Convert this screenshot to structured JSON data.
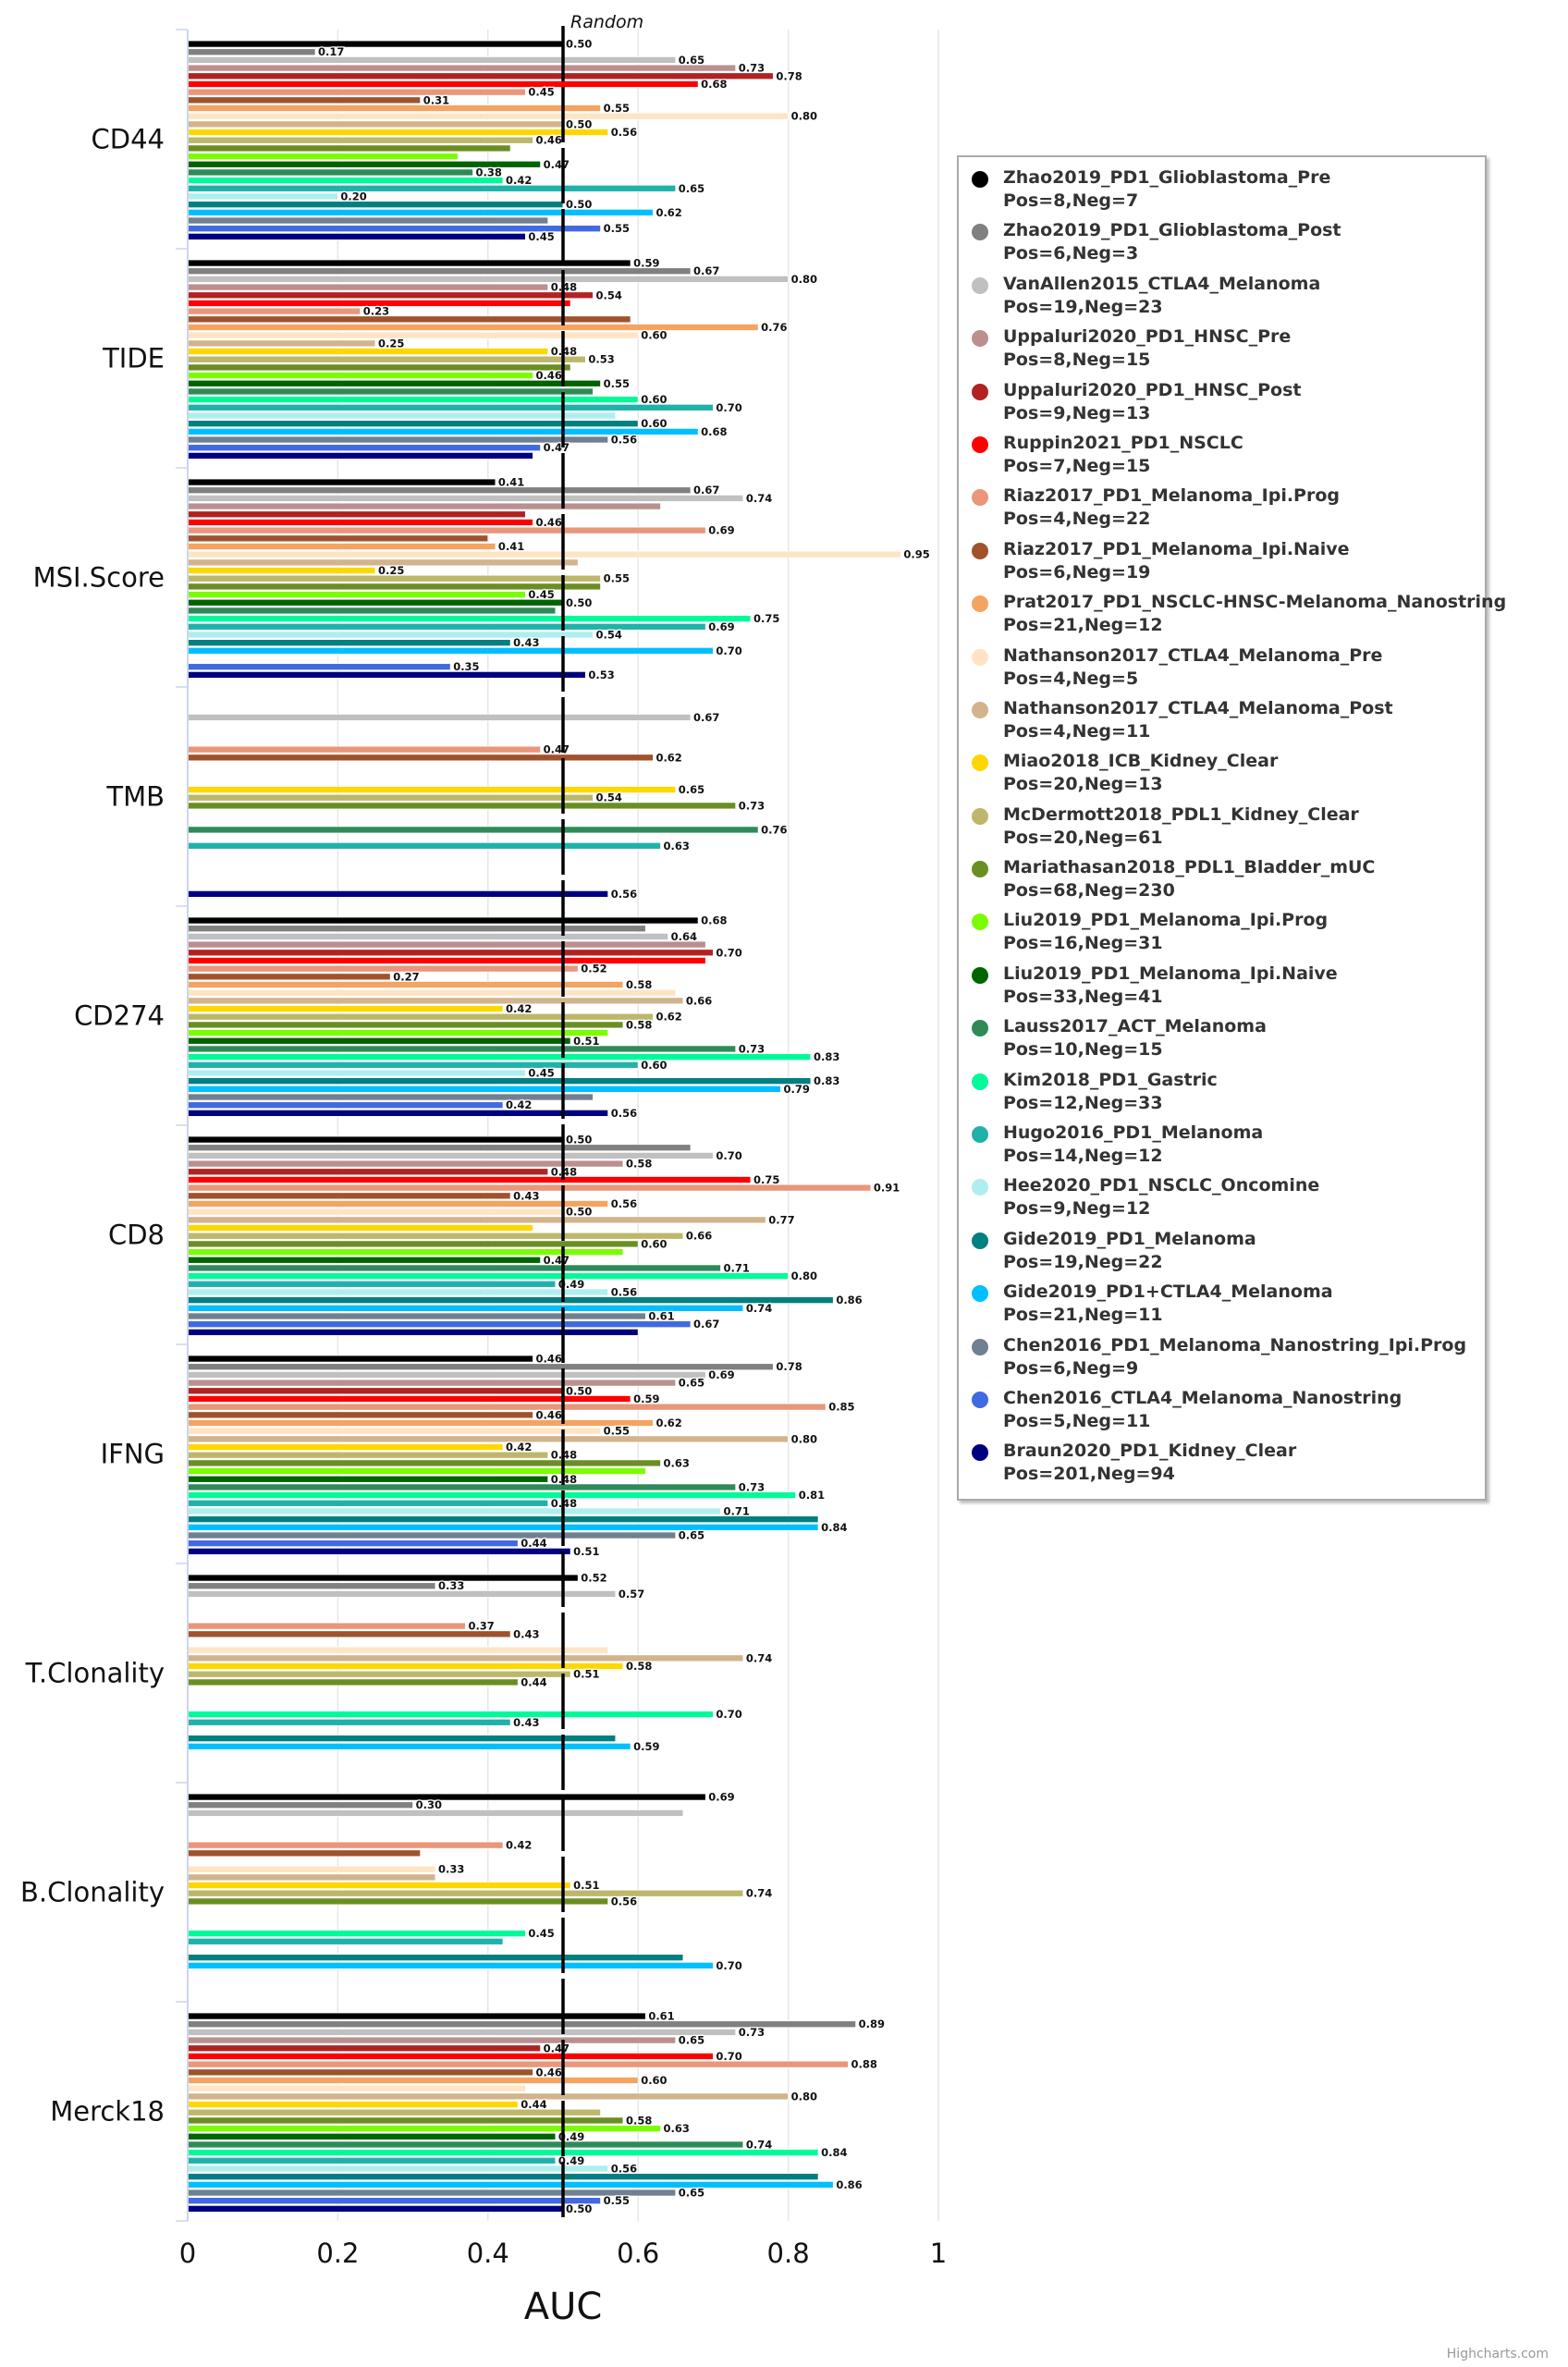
{
  "chart_data": {
    "type": "bar",
    "orientation": "horizontal",
    "title": "",
    "xlabel": "AUC",
    "ylabel": "",
    "xlim": [
      0,
      1
    ],
    "xticks": [
      "0",
      "0.2",
      "0.4",
      "0.6",
      "0.8",
      "1"
    ],
    "xtick_values": [
      0,
      0.2,
      0.4,
      0.6,
      0.8,
      1
    ],
    "grid": true,
    "legend_position": "right",
    "reference_line": {
      "value": 0.5,
      "label": "Random"
    },
    "credits": "Highcharts.com",
    "categories": [
      "CD44",
      "TIDE",
      "MSI.Score",
      "TMB",
      "CD274",
      "CD8",
      "IFNG",
      "T.Clonality",
      "B.Clonality",
      "Merck18"
    ],
    "series": [
      {
        "name": "Zhao2019_PD1_Glioblastoma_Pre",
        "counts": "Pos=8,Neg=7",
        "color": "#000000",
        "values": [
          0.5,
          0.59,
          0.41,
          null,
          0.68,
          0.5,
          0.46,
          0.52,
          0.69,
          0.61
        ]
      },
      {
        "name": "Zhao2019_PD1_Glioblastoma_Post",
        "counts": "Pos=6,Neg=3",
        "color": "#808080",
        "values": [
          0.17,
          0.67,
          0.67,
          null,
          0.61,
          0.67,
          0.78,
          0.33,
          0.3,
          0.89
        ]
      },
      {
        "name": "VanAllen2015_CTLA4_Melanoma",
        "counts": "Pos=19,Neg=23",
        "color": "#C0C0C0",
        "values": [
          0.65,
          0.8,
          0.74,
          0.67,
          0.64,
          0.7,
          0.69,
          0.57,
          0.66,
          0.73
        ]
      },
      {
        "name": "Uppaluri2020_PD1_HNSC_Pre",
        "counts": "Pos=8,Neg=15",
        "color": "#BC8F8F",
        "values": [
          0.73,
          0.48,
          0.63,
          null,
          0.69,
          0.58,
          0.65,
          null,
          null,
          0.65
        ]
      },
      {
        "name": "Uppaluri2020_PD1_HNSC_Post",
        "counts": "Pos=9,Neg=13",
        "color": "#B22222",
        "values": [
          0.78,
          0.54,
          0.45,
          null,
          0.7,
          0.48,
          0.5,
          null,
          null,
          0.47
        ]
      },
      {
        "name": "Ruppin2021_PD1_NSCLC",
        "counts": "Pos=7,Neg=15",
        "color": "#FF0000",
        "values": [
          0.68,
          0.51,
          0.46,
          null,
          0.69,
          0.75,
          0.59,
          null,
          null,
          0.7
        ]
      },
      {
        "name": "Riaz2017_PD1_Melanoma_Ipi.Prog",
        "counts": "Pos=4,Neg=22",
        "color": "#E9967A",
        "values": [
          0.45,
          0.23,
          0.69,
          0.47,
          0.52,
          0.91,
          0.85,
          0.37,
          0.42,
          0.88
        ]
      },
      {
        "name": "Riaz2017_PD1_Melanoma_Ipi.Naive",
        "counts": "Pos=6,Neg=19",
        "color": "#A0522D",
        "values": [
          0.31,
          0.59,
          0.4,
          0.62,
          0.27,
          0.43,
          0.46,
          0.43,
          0.31,
          0.46
        ]
      },
      {
        "name": "Prat2017_PD1_NSCLC-HNSC-Melanoma_Nanostring",
        "counts": "Pos=21,Neg=12",
        "color": "#F4A460",
        "values": [
          0.55,
          0.76,
          0.41,
          null,
          0.58,
          0.56,
          0.62,
          null,
          null,
          0.6
        ]
      },
      {
        "name": "Nathanson2017_CTLA4_Melanoma_Pre",
        "counts": "Pos=4,Neg=5",
        "color": "#FFE4C4",
        "values": [
          0.8,
          0.6,
          0.95,
          null,
          0.65,
          0.5,
          0.55,
          0.56,
          0.33,
          0.45
        ]
      },
      {
        "name": "Nathanson2017_CTLA4_Melanoma_Post",
        "counts": "Pos=4,Neg=11",
        "color": "#D2B48C",
        "values": [
          0.5,
          0.25,
          0.52,
          null,
          0.66,
          0.77,
          0.8,
          0.74,
          0.33,
          0.8
        ]
      },
      {
        "name": "Miao2018_ICB_Kidney_Clear",
        "counts": "Pos=20,Neg=13",
        "color": "#FFD700",
        "values": [
          0.56,
          0.48,
          0.25,
          0.65,
          0.42,
          0.46,
          0.42,
          0.58,
          0.51,
          0.44
        ]
      },
      {
        "name": "McDermott2018_PDL1_Kidney_Clear",
        "counts": "Pos=20,Neg=61",
        "color": "#BDB76B",
        "values": [
          0.46,
          0.53,
          0.55,
          0.54,
          0.62,
          0.66,
          0.48,
          0.51,
          0.74,
          0.55
        ]
      },
      {
        "name": "Mariathasan2018_PDL1_Bladder_mUC",
        "counts": "Pos=68,Neg=230",
        "color": "#6B8E23",
        "values": [
          0.43,
          0.51,
          0.55,
          0.73,
          0.58,
          0.6,
          0.63,
          0.44,
          0.56,
          0.58
        ]
      },
      {
        "name": "Liu2019_PD1_Melanoma_Ipi.Prog",
        "counts": "Pos=16,Neg=31",
        "color": "#7CFC00",
        "values": [
          0.36,
          0.46,
          0.45,
          null,
          0.56,
          0.58,
          0.61,
          null,
          null,
          0.63
        ]
      },
      {
        "name": "Liu2019_PD1_Melanoma_Ipi.Naive",
        "counts": "Pos=33,Neg=41",
        "color": "#006400",
        "values": [
          0.47,
          0.55,
          0.5,
          null,
          0.51,
          0.47,
          0.48,
          null,
          null,
          0.49
        ]
      },
      {
        "name": "Lauss2017_ACT_Melanoma",
        "counts": "Pos=10,Neg=15",
        "color": "#2E8B57",
        "values": [
          0.38,
          0.54,
          0.49,
          0.76,
          0.73,
          0.71,
          0.73,
          null,
          null,
          0.74
        ]
      },
      {
        "name": "Kim2018_PD1_Gastric",
        "counts": "Pos=12,Neg=33",
        "color": "#00FA9A",
        "values": [
          0.42,
          0.6,
          0.75,
          null,
          0.83,
          0.8,
          0.81,
          0.7,
          0.45,
          0.84
        ]
      },
      {
        "name": "Hugo2016_PD1_Melanoma",
        "counts": "Pos=14,Neg=12",
        "color": "#20B2AA",
        "values": [
          0.65,
          0.7,
          0.69,
          0.63,
          0.6,
          0.49,
          0.48,
          0.43,
          0.42,
          0.49
        ]
      },
      {
        "name": "Hee2020_PD1_NSCLC_Oncomine",
        "counts": "Pos=9,Neg=12",
        "color": "#AFEEEE",
        "values": [
          0.2,
          0.57,
          0.54,
          null,
          0.45,
          0.56,
          0.71,
          null,
          null,
          0.56
        ]
      },
      {
        "name": "Gide2019_PD1_Melanoma",
        "counts": "Pos=19,Neg=22",
        "color": "#008080",
        "values": [
          0.5,
          0.6,
          0.43,
          null,
          0.83,
          0.86,
          0.84,
          0.57,
          0.66,
          0.84
        ]
      },
      {
        "name": "Gide2019_PD1+CTLA4_Melanoma",
        "counts": "Pos=21,Neg=11",
        "color": "#00BFFF",
        "values": [
          0.62,
          0.68,
          0.7,
          null,
          0.79,
          0.74,
          0.84,
          0.59,
          0.7,
          0.86
        ]
      },
      {
        "name": "Chen2016_PD1_Melanoma_Nanostring_Ipi.Prog",
        "counts": "Pos=6,Neg=9",
        "color": "#708090",
        "values": [
          0.48,
          0.56,
          null,
          null,
          0.54,
          0.61,
          0.65,
          null,
          null,
          0.65
        ]
      },
      {
        "name": "Chen2016_CTLA4_Melanoma_Nanostring",
        "counts": "Pos=5,Neg=11",
        "color": "#4169E1",
        "values": [
          0.55,
          0.47,
          0.35,
          null,
          0.42,
          0.67,
          0.44,
          null,
          null,
          0.55
        ]
      },
      {
        "name": "Braun2020_PD1_Kidney_Clear",
        "counts": "Pos=201,Neg=94",
        "color": "#000080",
        "values": [
          0.45,
          0.46,
          0.53,
          0.56,
          0.56,
          0.6,
          0.51,
          null,
          null,
          0.5
        ]
      }
    ],
    "hidden_labels": [
      [
        13,
        14,
        22
      ],
      [
        5,
        7,
        13,
        16,
        19,
        24
      ],
      [
        3,
        4,
        7,
        10,
        13,
        16
      ],
      [],
      [
        1,
        3,
        5,
        9,
        14,
        22
      ],
      [
        1,
        11,
        14,
        24
      ],
      [
        14,
        20
      ],
      [
        9,
        20
      ],
      [
        2,
        7,
        10,
        18,
        20
      ],
      [
        9,
        12,
        20
      ]
    ]
  }
}
